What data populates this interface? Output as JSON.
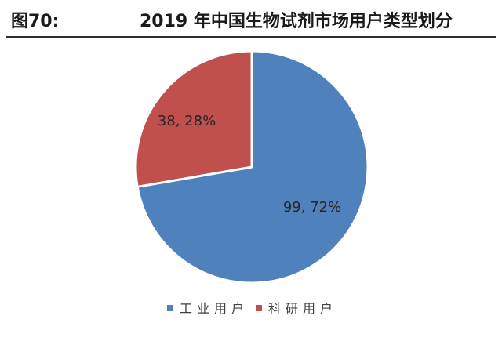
{
  "header": {
    "figure_label": "图70:",
    "title": "2019 年中国生物试剂市场用户类型划分"
  },
  "chart_data": {
    "type": "pie",
    "title": "2019 年中国生物试剂市场用户类型划分",
    "slices": [
      {
        "name": "工业用户",
        "value": 99,
        "percent": 72,
        "label": "99, 72%",
        "color": "#4f81bd"
      },
      {
        "name": "科研用户",
        "value": 38,
        "percent": 28,
        "label": "38, 28%",
        "color": "#c0504d"
      }
    ],
    "legend_position": "bottom"
  }
}
